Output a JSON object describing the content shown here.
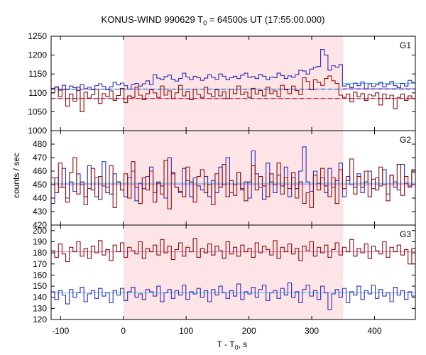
{
  "title_main": "KONUS-WIND 990629 T",
  "title_sub": "0",
  "title_rest": " = 64500s UT (17:55:00.000)",
  "ylabel": "counts / sec",
  "xlabel_main": "T - T",
  "xlabel_sub": "0",
  "xlabel_rest": ", s",
  "colors": {
    "blue": "#2d2db8",
    "red": "#8b0f0f",
    "bg_line": "#6fc6e8",
    "shade": "#fde4e6"
  },
  "chart_data": [
    {
      "type": "line",
      "panel_label": "G1",
      "xlim": [
        -115,
        465
      ],
      "ylim": [
        1000,
        1250
      ],
      "yticks": [
        1000,
        1050,
        1100,
        1150,
        1200,
        1250
      ],
      "shaded_interval": [
        0,
        350
      ],
      "series": [
        {
          "color": "blue",
          "background_level": 1110,
          "background_level_2": 1125,
          "values": [
            1112,
            1116,
            1107,
            1120,
            1109,
            1118,
            1114,
            1106,
            1122,
            1111,
            1115,
            1108,
            1119,
            1124,
            1117,
            1108,
            1116,
            1128,
            1121,
            1126,
            1119,
            1110,
            1122,
            1125,
            1118,
            1124,
            1132,
            1122,
            1148,
            1139,
            1135,
            1143,
            1147,
            1136,
            1131,
            1138,
            1152,
            1142,
            1135,
            1144,
            1140,
            1133,
            1139,
            1148,
            1141,
            1136,
            1150,
            1144,
            1135,
            1140,
            1144,
            1138,
            1147,
            1152,
            1141,
            1143,
            1138,
            1149,
            1144,
            1135,
            1142,
            1140,
            1152,
            1146,
            1138,
            1145,
            1141,
            1148,
            1160,
            1158,
            1150,
            1163,
            1168,
            1170,
            1215,
            1200,
            1160,
            1172,
            1168,
            1175,
            1118,
            1122,
            1114,
            1126,
            1119,
            1129,
            1110,
            1124,
            1117,
            1121,
            1128,
            1116,
            1123,
            1130,
            1119,
            1114,
            1125,
            1118,
            1133,
            1127
          ]
        },
        {
          "color": "red",
          "background_level": 1085,
          "background_level_2": 1112,
          "values": [
            1100,
            1115,
            1090,
            1108,
            1065,
            1097,
            1078,
            1115,
            1050,
            1102,
            1086,
            1095,
            1110,
            1072,
            1098,
            1090,
            1105,
            1080,
            1093,
            1112,
            1074,
            1092,
            1088,
            1115,
            1094,
            1082,
            1098,
            1108,
            1100,
            1088,
            1118,
            1094,
            1105,
            1085,
            1100,
            1120,
            1092,
            1104,
            1082,
            1110,
            1096,
            1088,
            1115,
            1098,
            1090,
            1108,
            1092,
            1103,
            1085,
            1110,
            1098,
            1118,
            1095,
            1102,
            1088,
            1112,
            1097,
            1106,
            1092,
            1115,
            1098,
            1105,
            1090,
            1120,
            1108,
            1098,
            1118,
            1106,
            1095,
            1140,
            1130,
            1108,
            1135,
            1128,
            1120,
            1138,
            1145,
            1132,
            1125,
            1094,
            1088,
            1097,
            1076,
            1102,
            1090,
            1098,
            1080,
            1095,
            1092,
            1100,
            1068,
            1097,
            1085,
            1094,
            1058,
            1088,
            1097,
            1080,
            1092,
            1085
          ]
        }
      ]
    },
    {
      "type": "line",
      "panel_label": "G2",
      "xlim": [
        -115,
        465
      ],
      "ylim": [
        420,
        490
      ],
      "yticks": [
        420,
        430,
        440,
        450,
        460,
        470,
        480
      ],
      "shaded_interval": [
        0,
        350
      ],
      "series": [
        {
          "color": "blue",
          "background_level": 451,
          "values": [
            436,
            455,
            448,
            462,
            440,
            452,
            445,
            458,
            450,
            441,
            464,
            446,
            455,
            439,
            467,
            448,
            443,
            458,
            452,
            446,
            441,
            455,
            460,
            438,
            451,
            447,
            456,
            463,
            444,
            452,
            449,
            440,
            470,
            458,
            448,
            444,
            462,
            453,
            441,
            455,
            449,
            446,
            456,
            441,
            453,
            444,
            463,
            450,
            470,
            444,
            450,
            459,
            446,
            452,
            440,
            475,
            458,
            448,
            439,
            466,
            452,
            444,
            457,
            449,
            463,
            441,
            455,
            447,
            460,
            478,
            452,
            445,
            460,
            451,
            455,
            444,
            462,
            448,
            453,
            466,
            441,
            456,
            450,
            448,
            458,
            444,
            452,
            460,
            447,
            455,
            449,
            461,
            443,
            457,
            452,
            446,
            465,
            451,
            448,
            459
          ]
        },
        {
          "color": "red",
          "background_level": 450,
          "values": [
            455,
            444,
            466,
            448,
            437,
            459,
            470,
            443,
            452,
            435,
            447,
            462,
            441,
            456,
            449,
            444,
            464,
            433,
            452,
            446,
            458,
            440,
            467,
            448,
            436,
            455,
            446,
            460,
            437,
            451,
            443,
            468,
            432,
            459,
            448,
            445,
            441,
            463,
            452,
            437,
            456,
            461,
            444,
            450,
            435,
            458,
            448,
            465,
            441,
            453,
            442,
            459,
            447,
            438,
            452,
            464,
            446,
            456,
            449,
            441,
            458,
            450,
            466,
            443,
            455,
            447,
            459,
            440,
            452,
            436,
            444,
            433,
            457,
            446,
            462,
            449,
            441,
            455,
            436,
            461,
            447,
            453,
            469,
            443,
            456,
            448,
            460,
            441,
            454,
            446,
            463,
            450,
            438,
            457,
            448,
            465,
            442,
            456,
            449,
            461
          ]
        }
      ]
    },
    {
      "type": "line",
      "panel_label": "G3",
      "xlim": [
        -115,
        465
      ],
      "ylim": [
        120,
        205
      ],
      "yticks": [
        120,
        130,
        140,
        150,
        160,
        170,
        180,
        190,
        200
      ],
      "shaded_interval": [
        0,
        350
      ],
      "series": [
        {
          "color": "blue",
          "background_level": 144,
          "values": [
            145,
            138,
            146,
            142,
            134,
            147,
            140,
            144,
            149,
            136,
            143,
            146,
            139,
            148,
            141,
            144,
            135,
            146,
            142,
            148,
            137,
            145,
            149,
            140,
            143,
            138,
            147,
            145,
            141,
            150,
            136,
            144,
            147,
            139,
            146,
            142,
            151,
            138,
            145,
            143,
            148,
            140,
            146,
            136,
            147,
            142,
            150,
            144,
            139,
            146,
            141,
            152,
            138,
            145,
            143,
            149,
            140,
            147,
            151,
            137,
            144,
            146,
            139,
            148,
            142,
            153,
            140,
            145,
            135,
            147,
            151,
            141,
            146,
            138,
            150,
            144,
            129,
            143,
            147,
            140,
            148,
            135,
            145,
            142,
            150,
            138,
            146,
            143,
            151,
            139,
            147,
            141,
            144,
            136,
            149,
            142,
            146,
            138,
            145,
            141
          ]
        },
        {
          "color": "red",
          "background_level": 181,
          "values": [
            182,
            176,
            188,
            179,
            172,
            185,
            181,
            190,
            177,
            184,
            175,
            186,
            180,
            191,
            178,
            183,
            173,
            187,
            181,
            189,
            176,
            185,
            182,
            179,
            190,
            175,
            184,
            181,
            187,
            178,
            192,
            180,
            186,
            174,
            183,
            189,
            177,
            185,
            181,
            193,
            176,
            184,
            180,
            188,
            178,
            186,
            182,
            175,
            190,
            179,
            185,
            177,
            187,
            181,
            184,
            176,
            189,
            180,
            186,
            183,
            178,
            191,
            175,
            185,
            181,
            188,
            179,
            184,
            173,
            186,
            182,
            190,
            177,
            185,
            180,
            187,
            176,
            183,
            189,
            178,
            185,
            181,
            192,
            177,
            184,
            180,
            188,
            175,
            186,
            182,
            179,
            190,
            176,
            185,
            181,
            187,
            178,
            183,
            170,
            184
          ]
        }
      ]
    }
  ],
  "xaxis": {
    "xlim": [
      -115,
      465
    ],
    "ticks": [
      -100,
      0,
      100,
      200,
      300,
      400
    ]
  }
}
